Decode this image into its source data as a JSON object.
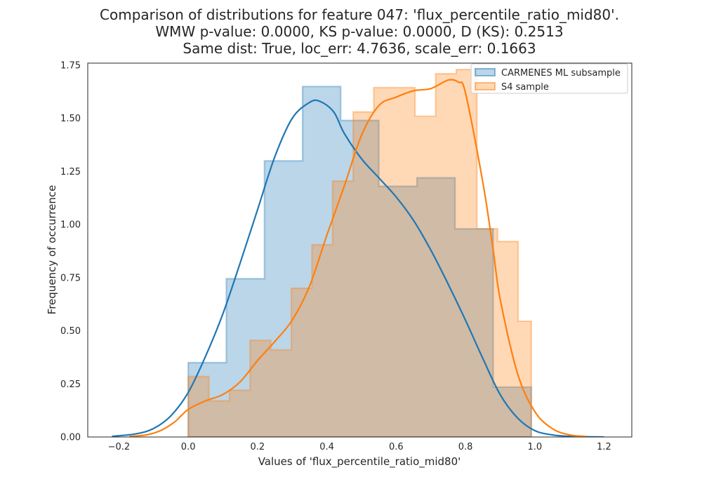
{
  "chart_data": {
    "type": "histogram",
    "title": [
      "Comparison of distributions for feature 047: 'flux_percentile_ratio_mid80'.",
      "WMW p-value: 0.0000, KS p-value: 0.0000, D (KS): 0.2513",
      "Same dist: True, loc_err: 4.7636, scale_err: 0.1663"
    ],
    "xlabel": "Values of 'flux_percentile_ratio_mid80'",
    "ylabel": "Frequency of occurrence",
    "xlim": [
      -0.29,
      1.28
    ],
    "ylim": [
      0,
      1.76
    ],
    "xticks": [
      -0.2,
      0.0,
      0.2,
      0.4,
      0.6,
      0.8,
      1.0,
      1.2
    ],
    "xtick_labels": [
      "−0.2",
      "0.0",
      "0.2",
      "0.4",
      "0.6",
      "0.8",
      "1.0",
      "1.2"
    ],
    "yticks": [
      0.0,
      0.25,
      0.5,
      0.75,
      1.0,
      1.25,
      1.5,
      1.75
    ],
    "ytick_labels": [
      "0.00",
      "0.25",
      "0.50",
      "0.75",
      "1.00",
      "1.25",
      "1.50",
      "1.75"
    ],
    "grid": false,
    "legend_position": "top-right",
    "series": [
      {
        "name": "CARMENES ML subsample",
        "color": "#1f77b4",
        "bin_edges": [
          0.0,
          0.11,
          0.22,
          0.33,
          0.44,
          0.55,
          0.66,
          0.77,
          0.88,
          0.99
        ],
        "values": [
          0.35,
          0.745,
          1.3,
          1.65,
          1.49,
          1.18,
          1.22,
          0.98,
          0.235
        ],
        "kde": {
          "x": [
            -0.22,
            -0.15,
            -0.1,
            -0.05,
            0.0,
            0.05,
            0.1,
            0.15,
            0.2,
            0.25,
            0.3,
            0.35,
            0.38,
            0.42,
            0.45,
            0.5,
            0.55,
            0.6,
            0.65,
            0.7,
            0.75,
            0.8,
            0.85,
            0.9,
            0.95,
            1.0,
            1.05,
            1.1,
            1.15,
            1.2
          ],
          "y": [
            0.003,
            0.015,
            0.04,
            0.1,
            0.21,
            0.38,
            0.58,
            0.82,
            1.07,
            1.32,
            1.5,
            1.575,
            1.58,
            1.53,
            1.43,
            1.31,
            1.22,
            1.13,
            1.02,
            0.88,
            0.72,
            0.55,
            0.37,
            0.2,
            0.09,
            0.03,
            0.01,
            0.003,
            0.001,
            0.0
          ]
        }
      },
      {
        "name": "S4 sample",
        "color": "#ff7f0e",
        "bin_edges": [
          0.0,
          0.0595,
          0.119,
          0.1785,
          0.238,
          0.2975,
          0.357,
          0.4165,
          0.476,
          0.5355,
          0.595,
          0.6545,
          0.714,
          0.7735,
          0.833,
          0.8925,
          0.952,
          0.99
        ],
        "values": [
          0.285,
          0.17,
          0.22,
          0.455,
          0.41,
          0.7,
          0.905,
          1.205,
          1.53,
          1.645,
          1.645,
          1.51,
          1.71,
          1.73,
          0.98,
          0.92,
          0.545
        ],
        "kde": {
          "x": [
            -0.17,
            -0.12,
            -0.08,
            -0.04,
            0.0,
            0.05,
            0.1,
            0.15,
            0.2,
            0.25,
            0.3,
            0.35,
            0.4,
            0.45,
            0.5,
            0.55,
            0.6,
            0.65,
            0.7,
            0.75,
            0.78,
            0.8,
            0.85,
            0.88,
            0.9,
            0.95,
            1.0,
            1.05,
            1.1,
            1.15
          ],
          "y": [
            0.002,
            0.01,
            0.03,
            0.07,
            0.13,
            0.17,
            0.2,
            0.26,
            0.36,
            0.45,
            0.55,
            0.71,
            0.95,
            1.18,
            1.42,
            1.56,
            1.6,
            1.63,
            1.64,
            1.68,
            1.67,
            1.62,
            1.2,
            0.88,
            0.65,
            0.3,
            0.12,
            0.04,
            0.01,
            0.002
          ]
        }
      }
    ]
  }
}
